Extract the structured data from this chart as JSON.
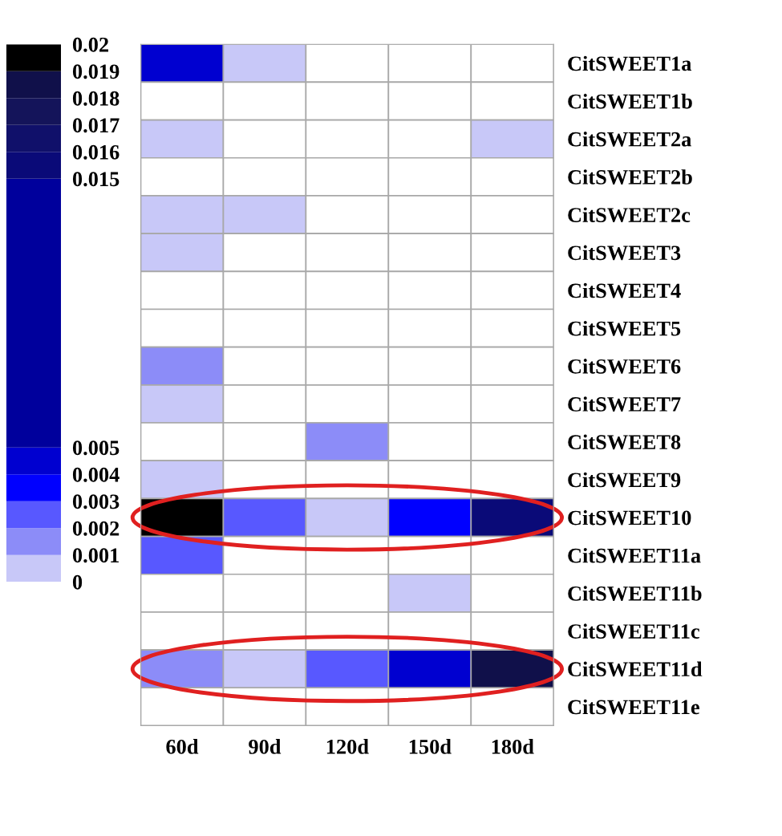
{
  "chart_data": {
    "type": "heatmap",
    "categories": [
      "60d",
      "90d",
      "120d",
      "150d",
      "180d"
    ],
    "y_categories": [
      "CitSWEET1a",
      "CitSWEET1b",
      "CitSWEET2a",
      "CitSWEET2b",
      "CitSWEET2c",
      "CitSWEET3",
      "CitSWEET4",
      "CitSWEET5",
      "CitSWEET6",
      "CitSWEET7",
      "CitSWEET8",
      "CitSWEET9",
      "CitSWEET10",
      "CitSWEET11a",
      "CitSWEET11b",
      "CitSWEET11c",
      "CitSWEET11d",
      "CitSWEET11e"
    ],
    "cells": [
      [
        0.0045,
        0.0005,
        null,
        null,
        null
      ],
      [
        null,
        null,
        null,
        null,
        null
      ],
      [
        0.0005,
        null,
        null,
        null,
        0.0005
      ],
      [
        null,
        null,
        null,
        null,
        null
      ],
      [
        0.0005,
        0.0005,
        null,
        null,
        null
      ],
      [
        0.0005,
        null,
        null,
        null,
        null
      ],
      [
        null,
        null,
        null,
        null,
        null
      ],
      [
        null,
        null,
        null,
        null,
        null
      ],
      [
        0.0015,
        null,
        null,
        null,
        null
      ],
      [
        0.0005,
        null,
        null,
        null,
        null
      ],
      [
        null,
        null,
        0.0015,
        null,
        null
      ],
      [
        0.0005,
        null,
        null,
        null,
        null
      ],
      [
        0.0195,
        0.0025,
        0.0005,
        0.0035,
        0.0155
      ],
      [
        0.0025,
        null,
        null,
        null,
        null
      ],
      [
        null,
        null,
        null,
        0.0005,
        null
      ],
      [
        null,
        null,
        null,
        null,
        null
      ],
      [
        0.0015,
        0.0005,
        0.0025,
        0.0045,
        0.0185
      ],
      [
        null,
        null,
        null,
        null,
        null
      ]
    ],
    "clim": [
      0,
      0.02
    ],
    "cticks": [
      0,
      0.001,
      0.002,
      0.003,
      0.004,
      0.005,
      0.015,
      0.016,
      0.017,
      0.018,
      0.019,
      0.02
    ],
    "colors": [
      "#c8c8f8",
      "#8c8cf8",
      "#5858ff",
      "#0000ff",
      "#0000d0",
      "#00009c",
      "#0a0a78",
      "#10106a",
      "#14145a",
      "#10104a",
      "#000000"
    ]
  }
}
